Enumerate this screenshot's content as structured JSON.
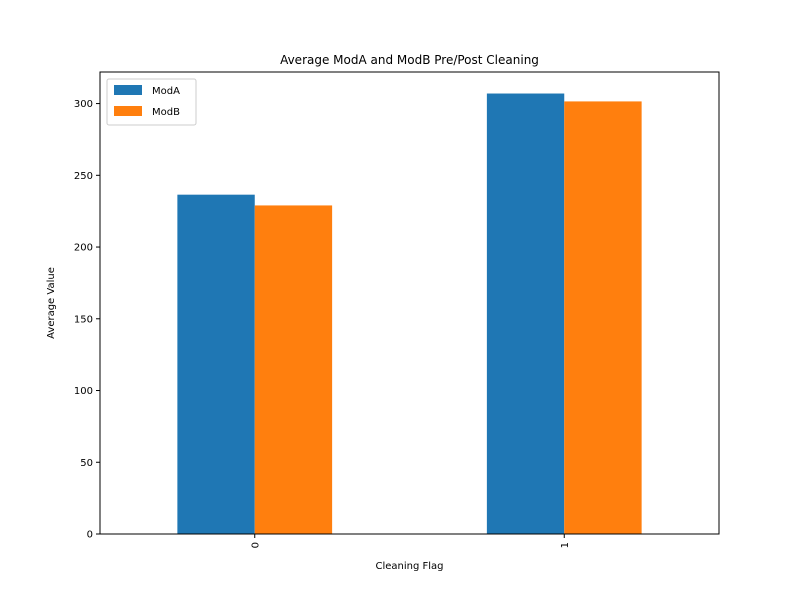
{
  "chart_data": {
    "type": "bar",
    "title": "Average ModA and ModB Pre/Post Cleaning",
    "xlabel": "Cleaning Flag",
    "ylabel": "Average Value",
    "categories": [
      "0",
      "1"
    ],
    "series": [
      {
        "name": "ModA",
        "color": "#1f77b4",
        "values": [
          236.5,
          307
        ]
      },
      {
        "name": "ModB",
        "color": "#ff7f0e",
        "values": [
          229,
          301.5
        ]
      }
    ],
    "ylim": [
      0,
      322
    ],
    "yticks": [
      0,
      50,
      100,
      150,
      200,
      250,
      300
    ],
    "x_tick_rotation": 90,
    "grid": false,
    "legend_position": "top-left"
  }
}
